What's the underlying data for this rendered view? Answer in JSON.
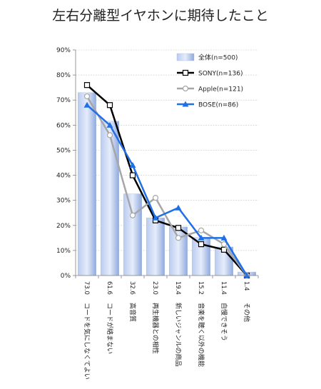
{
  "chart_data": {
    "type": "bar",
    "title": "左右分離型イヤホンに期待したこと",
    "xlabel": "",
    "ylabel": "",
    "ylim": [
      0,
      90
    ],
    "yticks": [
      "0%",
      "10%",
      "20%",
      "30%",
      "40%",
      "50%",
      "60%",
      "70%",
      "80%",
      "90%"
    ],
    "grid": true,
    "legend_position": "top-right",
    "categories": [
      "コードを気にしなくてよい",
      "コードが絡まない",
      "高音質",
      "再生機器との相性",
      "新しいジャンルの商品",
      "音楽を聴く以外の機能",
      "自慢できそう",
      "その他"
    ],
    "bar_labels": [
      "73.0",
      "61.6",
      "32.6",
      "23.0",
      "19.4",
      "15.2",
      "11.4",
      "1.4"
    ],
    "series": [
      {
        "name": "全体(n=500)",
        "kind": "bar",
        "color": "#9db4e4",
        "values": [
          73.0,
          61.6,
          32.6,
          23.0,
          19.4,
          15.2,
          11.4,
          1.4
        ]
      },
      {
        "name": "SONY(n=136)",
        "kind": "line",
        "marker": "square",
        "color": "#000000",
        "values": [
          76,
          68,
          40,
          22,
          19,
          12.5,
          10.3,
          0
        ]
      },
      {
        "name": "Apple(n=121)",
        "kind": "line",
        "marker": "circle",
        "color": "#a6a6a6",
        "values": [
          71.5,
          56,
          24,
          31,
          15,
          18,
          12.5,
          0
        ]
      },
      {
        "name": "BOSE(n=86)",
        "kind": "line",
        "marker": "triangle",
        "color": "#1f6fe6",
        "values": [
          68,
          60,
          44,
          23,
          27,
          15,
          15,
          0
        ]
      }
    ]
  }
}
